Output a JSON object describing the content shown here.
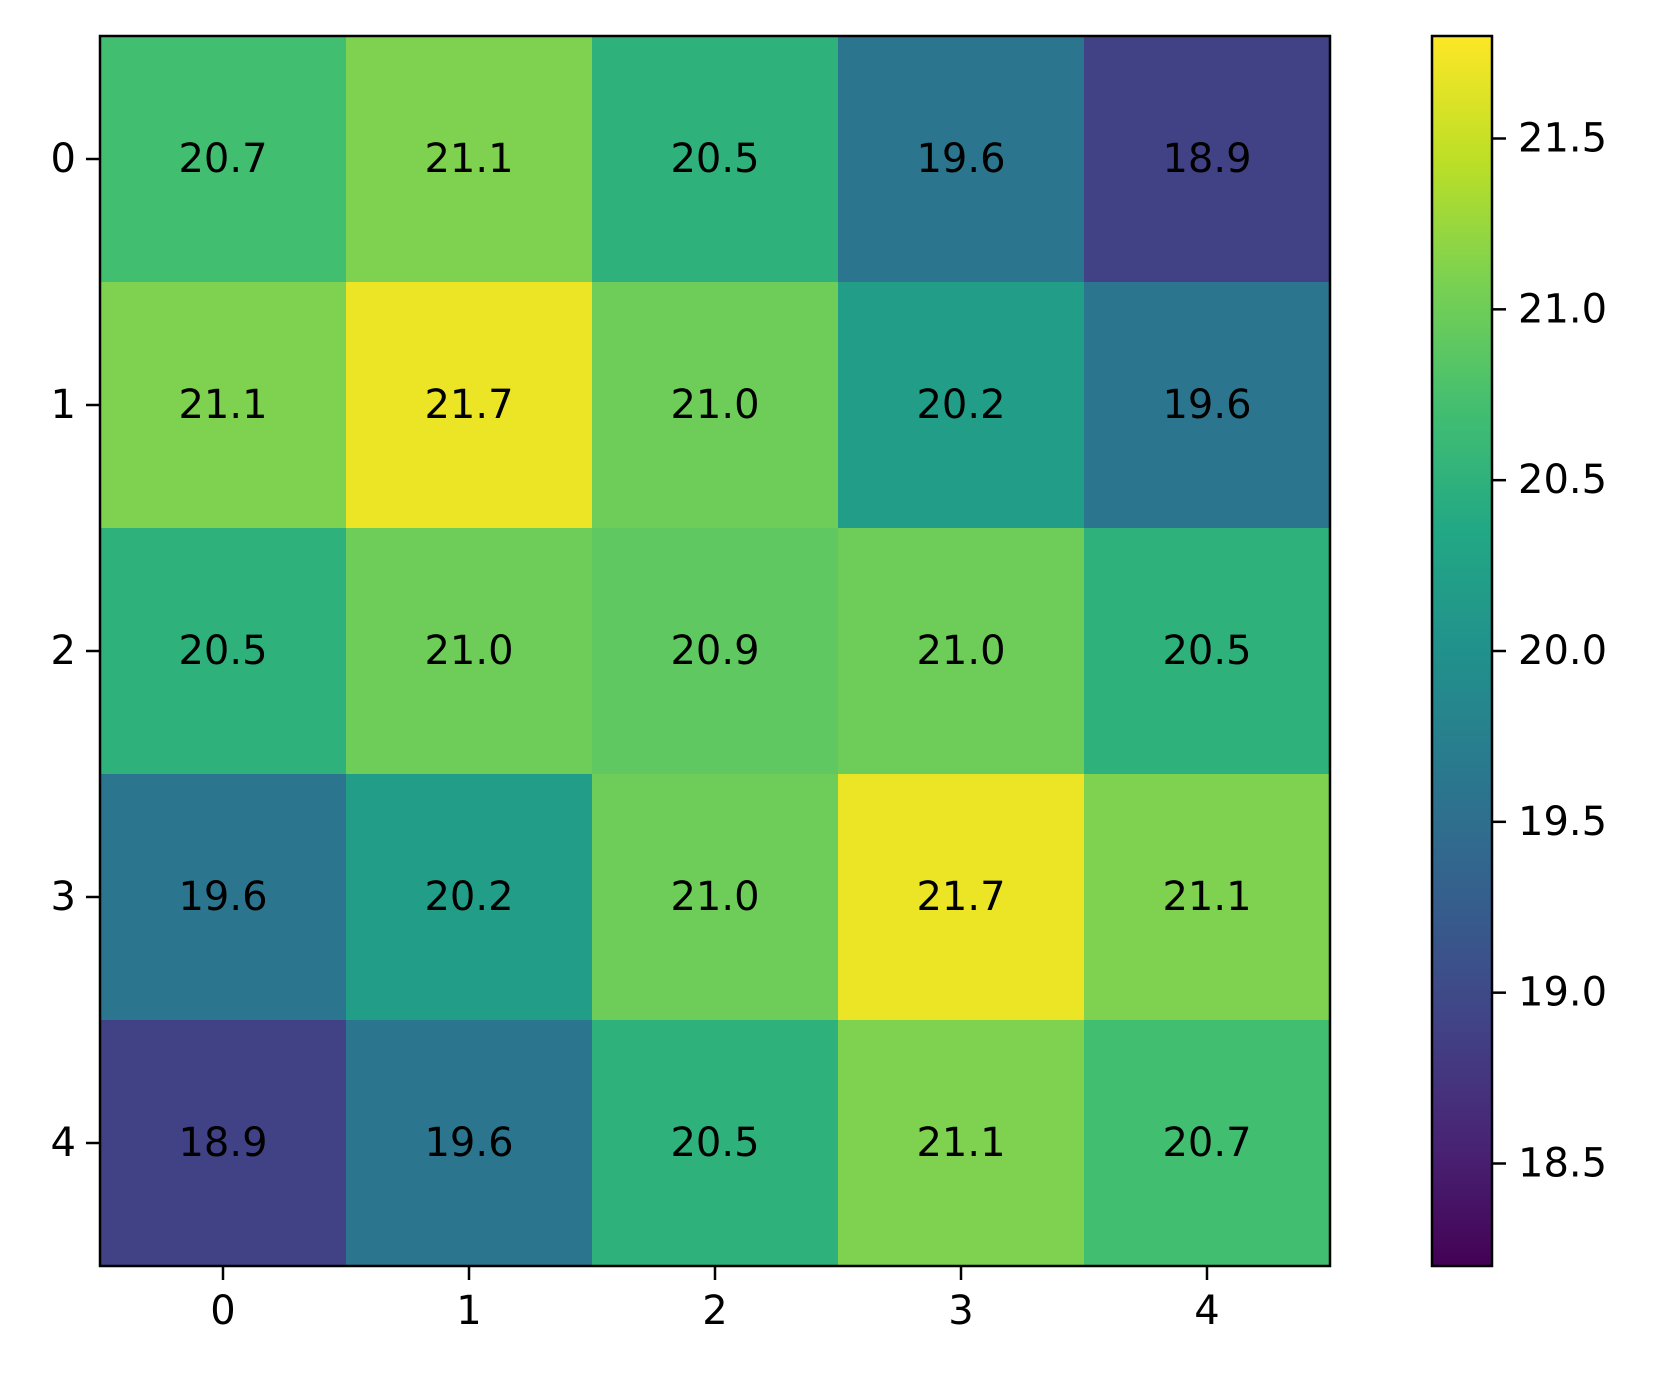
{
  "chart_data": {
    "type": "heatmap",
    "title": "",
    "xlabel": "",
    "ylabel": "",
    "x_categories": [
      "0",
      "1",
      "2",
      "3",
      "4"
    ],
    "y_categories": [
      "0",
      "1",
      "2",
      "3",
      "4"
    ],
    "values": [
      [
        20.7,
        21.1,
        20.5,
        19.6,
        18.9
      ],
      [
        21.1,
        21.7,
        21.0,
        20.2,
        19.6
      ],
      [
        20.5,
        21.0,
        20.9,
        21.0,
        20.5
      ],
      [
        19.6,
        20.2,
        21.0,
        21.7,
        21.1
      ],
      [
        18.9,
        19.6,
        20.5,
        21.1,
        20.7
      ]
    ],
    "value_labels": [
      [
        "20.7",
        "21.1",
        "20.5",
        "19.6",
        "18.9"
      ],
      [
        "21.1",
        "21.7",
        "21.0",
        "20.2",
        "19.6"
      ],
      [
        "20.5",
        "21.0",
        "20.9",
        "21.0",
        "20.5"
      ],
      [
        "19.6",
        "20.2",
        "21.0",
        "21.7",
        "21.1"
      ],
      [
        "18.9",
        "19.6",
        "20.5",
        "21.1",
        "20.7"
      ]
    ],
    "colormap": "viridis",
    "color_range": [
      18.2,
      21.8
    ],
    "colorbar_ticks": [
      "18.5",
      "19.0",
      "19.5",
      "20.0",
      "20.5",
      "21.0",
      "21.5"
    ],
    "legend": "colorbar-right",
    "grid": false
  }
}
